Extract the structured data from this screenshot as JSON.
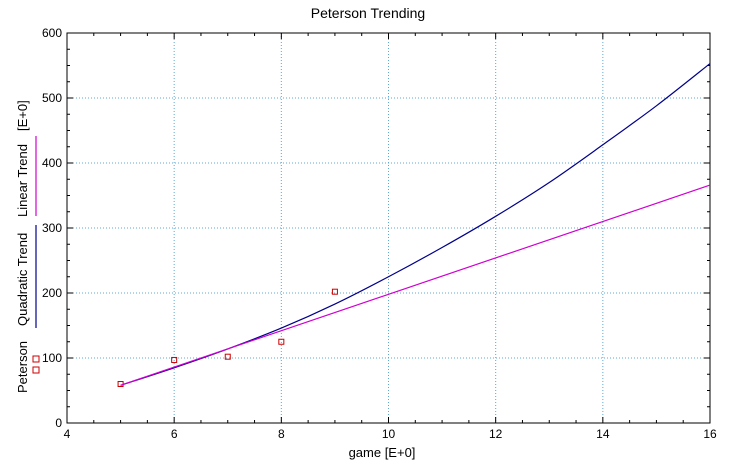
{
  "chart_data": {
    "type": "scatter",
    "title": "Peterson Trending",
    "xlabel": "game  [E+0]",
    "ylabel_parts": [
      "Peterson",
      "Quadratic Trend",
      "Linear Trend",
      "[E+0]"
    ],
    "xlim": [
      4,
      16
    ],
    "ylim": [
      0,
      600
    ],
    "x_ticks": [
      4,
      6,
      8,
      10,
      12,
      14,
      16
    ],
    "y_ticks": [
      0,
      100,
      200,
      300,
      400,
      500,
      600
    ],
    "grid": true,
    "series": [
      {
        "name": "Peterson",
        "kind": "points",
        "color": "#cc0000",
        "x": [
          5,
          6,
          7,
          8,
          9
        ],
        "y": [
          60,
          97,
          102,
          125,
          202
        ]
      },
      {
        "name": "Quadratic Trend",
        "kind": "curve",
        "color": "#00008b",
        "x": [
          5,
          6,
          7,
          8,
          9,
          10,
          11,
          12,
          13,
          14,
          15,
          16
        ],
        "y": [
          58,
          85,
          114,
          146,
          183,
          225,
          270,
          318,
          370,
          428,
          488,
          553
        ]
      },
      {
        "name": "Linear Trend",
        "kind": "curve",
        "color": "#d000d0",
        "x": [
          5,
          16
        ],
        "y": [
          58,
          366
        ]
      }
    ]
  }
}
